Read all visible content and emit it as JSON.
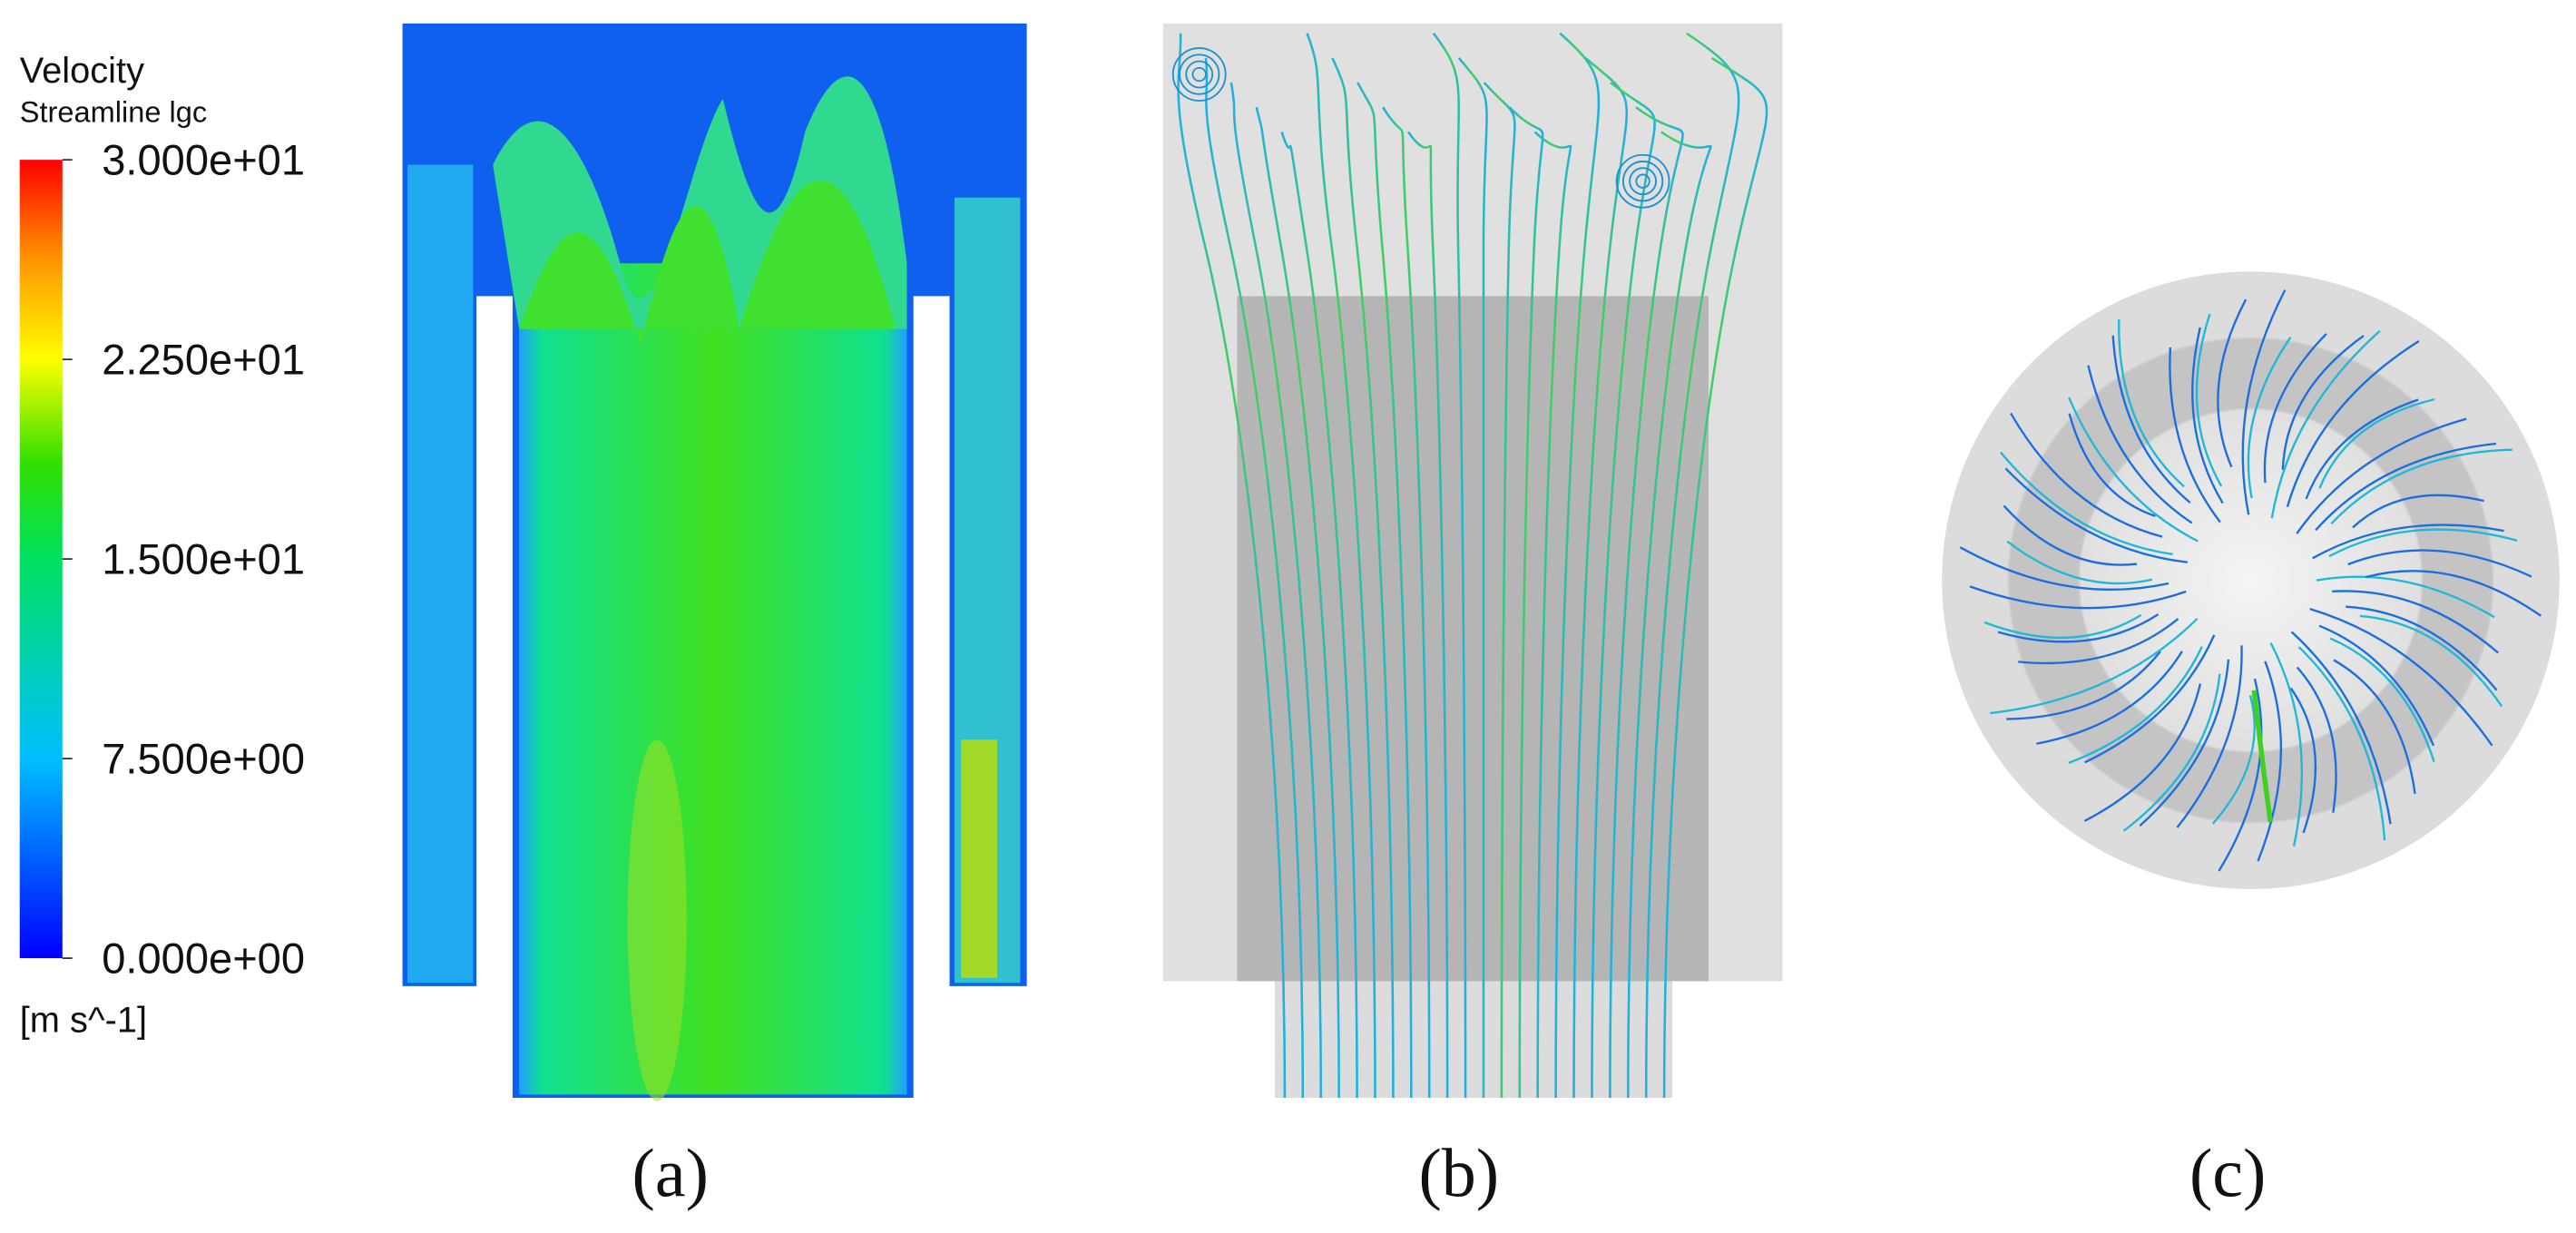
{
  "legend": {
    "title": "Velocity",
    "subtitle": "Streamline lgc",
    "range": [
      0,
      30
    ],
    "ticks": [
      {
        "value": 30,
        "label": "3.000e+01"
      },
      {
        "value": 22.5,
        "label": "2.250e+01"
      },
      {
        "value": 15,
        "label": "1.500e+01"
      },
      {
        "value": 7.5,
        "label": "7.500e+00"
      },
      {
        "value": 0,
        "label": "0.000e+00"
      }
    ],
    "unit": "[m s^-1]"
  },
  "panels": [
    {
      "label": "(a)"
    },
    {
      "label": "(b)"
    },
    {
      "label": "(c)"
    }
  ]
}
